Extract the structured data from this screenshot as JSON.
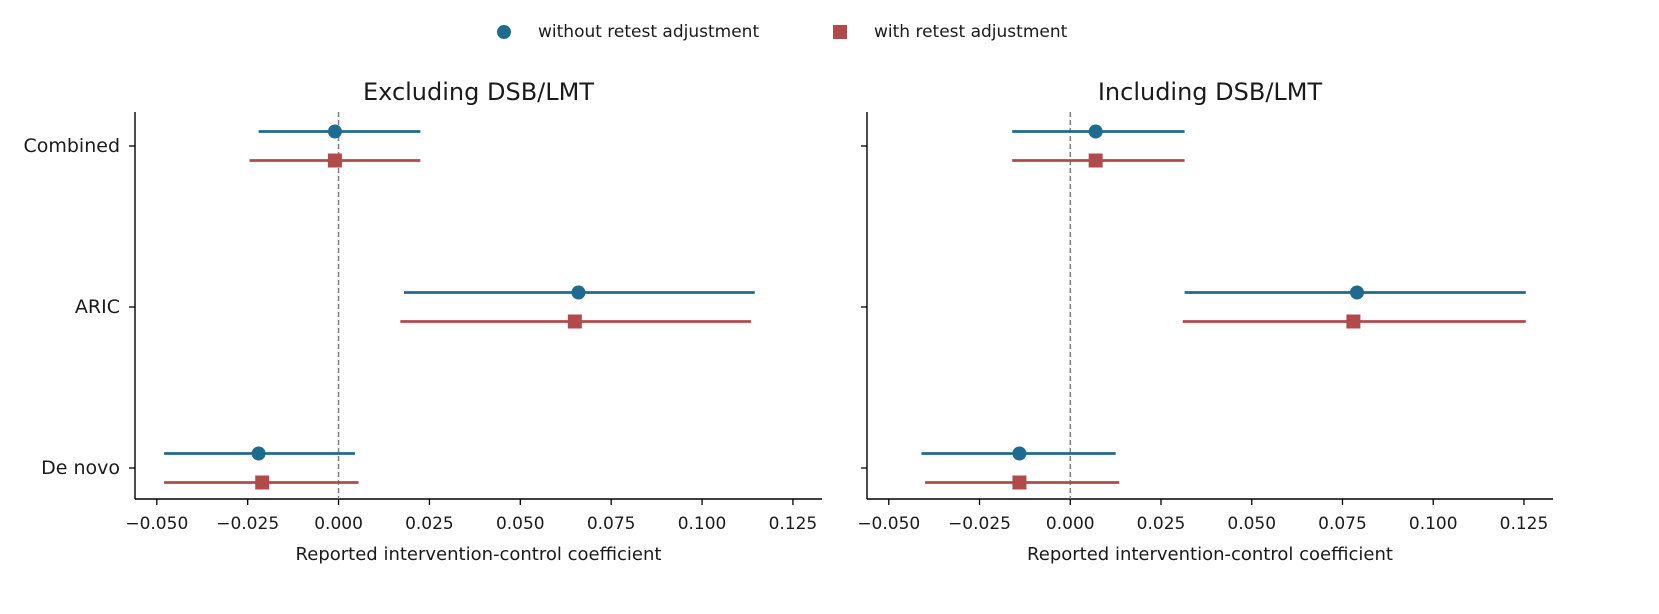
{
  "legend": {
    "placement": "top-center",
    "items": [
      {
        "label": "without retest adjustment",
        "marker": "circle",
        "color": "#1f6a8f"
      },
      {
        "label": "with retest adjustment",
        "marker": "square",
        "color": "#b04a4b"
      }
    ]
  },
  "colors": {
    "without": "#1f6a8f",
    "with": "#b04a4b",
    "zero_line": "#808080",
    "axis": "#000000"
  },
  "chart_data": [
    {
      "type": "forest",
      "title": "Excluding DSB/LMT",
      "xlabel": "Reported intervention-control coefficient",
      "ylabel": "",
      "xlim": [
        -0.056,
        0.133
      ],
      "xticks": [
        -0.05,
        -0.025,
        0.0,
        0.025,
        0.05,
        0.075,
        0.1,
        0.125
      ],
      "xtick_labels": [
        "−0.050",
        "−0.025",
        "0.000",
        "0.025",
        "0.050",
        "0.075",
        "0.100",
        "0.125"
      ],
      "categories": [
        "Combined",
        "ARIC",
        "De novo"
      ],
      "reference_line": 0,
      "grid": false,
      "series": [
        {
          "name": "without retest adjustment",
          "estimate": [
            -0.001,
            0.066,
            -0.022
          ],
          "ci_low": [
            -0.022,
            0.018,
            -0.048
          ],
          "ci_high": [
            0.0225,
            0.1145,
            0.0045
          ]
        },
        {
          "name": "with retest adjustment",
          "estimate": [
            -0.001,
            0.065,
            -0.021
          ],
          "ci_low": [
            -0.0245,
            0.017,
            -0.048
          ],
          "ci_high": [
            0.0225,
            0.1135,
            0.0055
          ]
        }
      ]
    },
    {
      "type": "forest",
      "title": "Including DSB/LMT",
      "xlabel": "Reported intervention-control coefficient",
      "ylabel": "",
      "xlim": [
        -0.056,
        0.133
      ],
      "xticks": [
        -0.05,
        -0.025,
        0.0,
        0.025,
        0.05,
        0.075,
        0.1,
        0.125
      ],
      "xtick_labels": [
        "−0.050",
        "−0.025",
        "0.000",
        "0.025",
        "0.050",
        "0.075",
        "0.100",
        "0.125"
      ],
      "categories": [
        "Combined",
        "ARIC",
        "De novo"
      ],
      "reference_line": 0,
      "grid": false,
      "series": [
        {
          "name": "without retest adjustment",
          "estimate": [
            0.007,
            0.079,
            -0.014
          ],
          "ci_low": [
            -0.016,
            0.0315,
            -0.041
          ],
          "ci_high": [
            0.0315,
            0.1255,
            0.0125
          ]
        },
        {
          "name": "with retest adjustment",
          "estimate": [
            0.007,
            0.078,
            -0.014
          ],
          "ci_low": [
            -0.016,
            0.031,
            -0.04
          ],
          "ci_high": [
            0.0315,
            0.1255,
            0.0135
          ]
        }
      ]
    }
  ]
}
